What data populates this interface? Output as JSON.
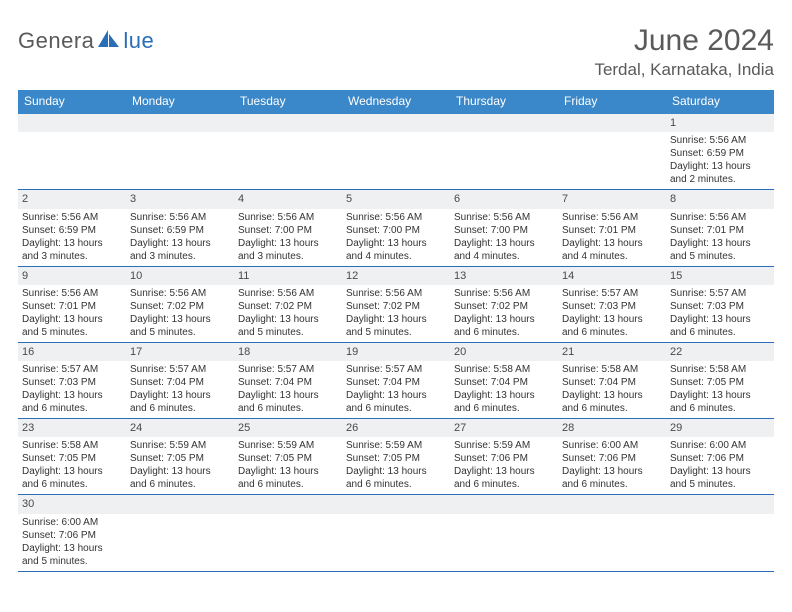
{
  "brand": {
    "pre": "Genera",
    "post": "lue"
  },
  "title": "June 2024",
  "subtitle": "Terdal, Karnataka, India",
  "colors": {
    "header_bg": "#3a87c9",
    "header_fg": "#ffffff",
    "row_divider": "#2a6db8",
    "daynum_bg": "#eef0f2",
    "text": "#333333",
    "title_color": "#5a5a5a",
    "brand_blue": "#2a6db8",
    "brand_gray": "#5a5a5a",
    "page_bg": "#ffffff"
  },
  "layout": {
    "columns": 7,
    "label_fontsize": 12,
    "body_fontsize": 10,
    "daynum_fontsize": 11,
    "title_fontsize": 30,
    "subtitle_fontsize": 17
  },
  "weekdays": [
    "Sunday",
    "Monday",
    "Tuesday",
    "Wednesday",
    "Thursday",
    "Friday",
    "Saturday"
  ],
  "weeks": [
    [
      null,
      null,
      null,
      null,
      null,
      null,
      {
        "n": "1",
        "sr": "Sunrise: 5:56 AM",
        "ss": "Sunset: 6:59 PM",
        "d1": "Daylight: 13 hours",
        "d2": "and 2 minutes."
      }
    ],
    [
      {
        "n": "2",
        "sr": "Sunrise: 5:56 AM",
        "ss": "Sunset: 6:59 PM",
        "d1": "Daylight: 13 hours",
        "d2": "and 3 minutes."
      },
      {
        "n": "3",
        "sr": "Sunrise: 5:56 AM",
        "ss": "Sunset: 6:59 PM",
        "d1": "Daylight: 13 hours",
        "d2": "and 3 minutes."
      },
      {
        "n": "4",
        "sr": "Sunrise: 5:56 AM",
        "ss": "Sunset: 7:00 PM",
        "d1": "Daylight: 13 hours",
        "d2": "and 3 minutes."
      },
      {
        "n": "5",
        "sr": "Sunrise: 5:56 AM",
        "ss": "Sunset: 7:00 PM",
        "d1": "Daylight: 13 hours",
        "d2": "and 4 minutes."
      },
      {
        "n": "6",
        "sr": "Sunrise: 5:56 AM",
        "ss": "Sunset: 7:00 PM",
        "d1": "Daylight: 13 hours",
        "d2": "and 4 minutes."
      },
      {
        "n": "7",
        "sr": "Sunrise: 5:56 AM",
        "ss": "Sunset: 7:01 PM",
        "d1": "Daylight: 13 hours",
        "d2": "and 4 minutes."
      },
      {
        "n": "8",
        "sr": "Sunrise: 5:56 AM",
        "ss": "Sunset: 7:01 PM",
        "d1": "Daylight: 13 hours",
        "d2": "and 5 minutes."
      }
    ],
    [
      {
        "n": "9",
        "sr": "Sunrise: 5:56 AM",
        "ss": "Sunset: 7:01 PM",
        "d1": "Daylight: 13 hours",
        "d2": "and 5 minutes."
      },
      {
        "n": "10",
        "sr": "Sunrise: 5:56 AM",
        "ss": "Sunset: 7:02 PM",
        "d1": "Daylight: 13 hours",
        "d2": "and 5 minutes."
      },
      {
        "n": "11",
        "sr": "Sunrise: 5:56 AM",
        "ss": "Sunset: 7:02 PM",
        "d1": "Daylight: 13 hours",
        "d2": "and 5 minutes."
      },
      {
        "n": "12",
        "sr": "Sunrise: 5:56 AM",
        "ss": "Sunset: 7:02 PM",
        "d1": "Daylight: 13 hours",
        "d2": "and 5 minutes."
      },
      {
        "n": "13",
        "sr": "Sunrise: 5:56 AM",
        "ss": "Sunset: 7:02 PM",
        "d1": "Daylight: 13 hours",
        "d2": "and 6 minutes."
      },
      {
        "n": "14",
        "sr": "Sunrise: 5:57 AM",
        "ss": "Sunset: 7:03 PM",
        "d1": "Daylight: 13 hours",
        "d2": "and 6 minutes."
      },
      {
        "n": "15",
        "sr": "Sunrise: 5:57 AM",
        "ss": "Sunset: 7:03 PM",
        "d1": "Daylight: 13 hours",
        "d2": "and 6 minutes."
      }
    ],
    [
      {
        "n": "16",
        "sr": "Sunrise: 5:57 AM",
        "ss": "Sunset: 7:03 PM",
        "d1": "Daylight: 13 hours",
        "d2": "and 6 minutes."
      },
      {
        "n": "17",
        "sr": "Sunrise: 5:57 AM",
        "ss": "Sunset: 7:04 PM",
        "d1": "Daylight: 13 hours",
        "d2": "and 6 minutes."
      },
      {
        "n": "18",
        "sr": "Sunrise: 5:57 AM",
        "ss": "Sunset: 7:04 PM",
        "d1": "Daylight: 13 hours",
        "d2": "and 6 minutes."
      },
      {
        "n": "19",
        "sr": "Sunrise: 5:57 AM",
        "ss": "Sunset: 7:04 PM",
        "d1": "Daylight: 13 hours",
        "d2": "and 6 minutes."
      },
      {
        "n": "20",
        "sr": "Sunrise: 5:58 AM",
        "ss": "Sunset: 7:04 PM",
        "d1": "Daylight: 13 hours",
        "d2": "and 6 minutes."
      },
      {
        "n": "21",
        "sr": "Sunrise: 5:58 AM",
        "ss": "Sunset: 7:04 PM",
        "d1": "Daylight: 13 hours",
        "d2": "and 6 minutes."
      },
      {
        "n": "22",
        "sr": "Sunrise: 5:58 AM",
        "ss": "Sunset: 7:05 PM",
        "d1": "Daylight: 13 hours",
        "d2": "and 6 minutes."
      }
    ],
    [
      {
        "n": "23",
        "sr": "Sunrise: 5:58 AM",
        "ss": "Sunset: 7:05 PM",
        "d1": "Daylight: 13 hours",
        "d2": "and 6 minutes."
      },
      {
        "n": "24",
        "sr": "Sunrise: 5:59 AM",
        "ss": "Sunset: 7:05 PM",
        "d1": "Daylight: 13 hours",
        "d2": "and 6 minutes."
      },
      {
        "n": "25",
        "sr": "Sunrise: 5:59 AM",
        "ss": "Sunset: 7:05 PM",
        "d1": "Daylight: 13 hours",
        "d2": "and 6 minutes."
      },
      {
        "n": "26",
        "sr": "Sunrise: 5:59 AM",
        "ss": "Sunset: 7:05 PM",
        "d1": "Daylight: 13 hours",
        "d2": "and 6 minutes."
      },
      {
        "n": "27",
        "sr": "Sunrise: 5:59 AM",
        "ss": "Sunset: 7:06 PM",
        "d1": "Daylight: 13 hours",
        "d2": "and 6 minutes."
      },
      {
        "n": "28",
        "sr": "Sunrise: 6:00 AM",
        "ss": "Sunset: 7:06 PM",
        "d1": "Daylight: 13 hours",
        "d2": "and 6 minutes."
      },
      {
        "n": "29",
        "sr": "Sunrise: 6:00 AM",
        "ss": "Sunset: 7:06 PM",
        "d1": "Daylight: 13 hours",
        "d2": "and 5 minutes."
      }
    ],
    [
      {
        "n": "30",
        "sr": "Sunrise: 6:00 AM",
        "ss": "Sunset: 7:06 PM",
        "d1": "Daylight: 13 hours",
        "d2": "and 5 minutes."
      },
      null,
      null,
      null,
      null,
      null,
      null
    ]
  ]
}
